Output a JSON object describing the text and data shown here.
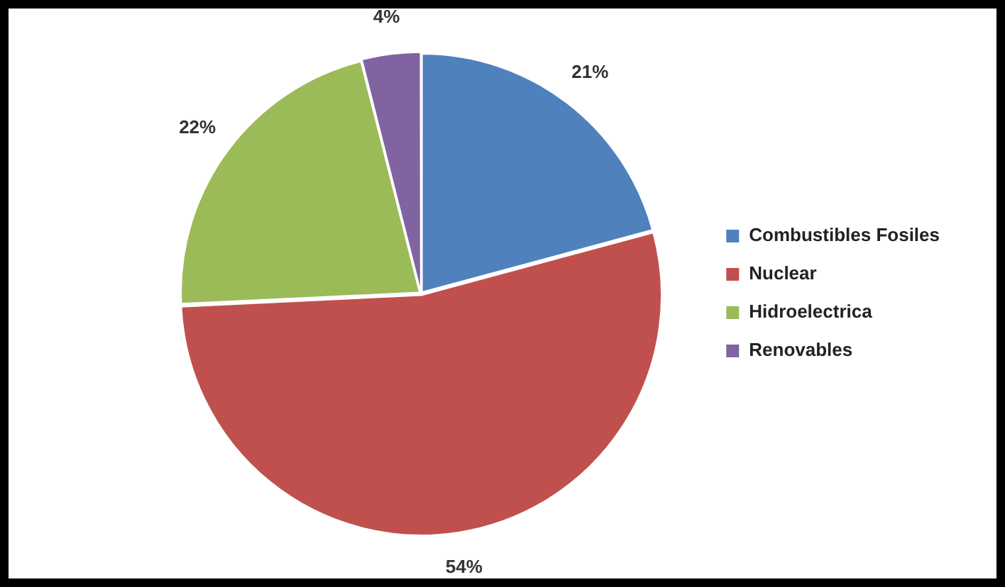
{
  "chart_data": {
    "type": "pie",
    "categories": [
      "Combustibles Fosiles",
      "Nuclear",
      "Hidroelectrica",
      "Renovables"
    ],
    "values": [
      21,
      54,
      22,
      4
    ],
    "value_labels": [
      "21%",
      "54%",
      "22%",
      "4%"
    ],
    "colors": [
      "#4f81bd",
      "#c0504d",
      "#9bbb59",
      "#8064a2"
    ],
    "legend": "right"
  }
}
